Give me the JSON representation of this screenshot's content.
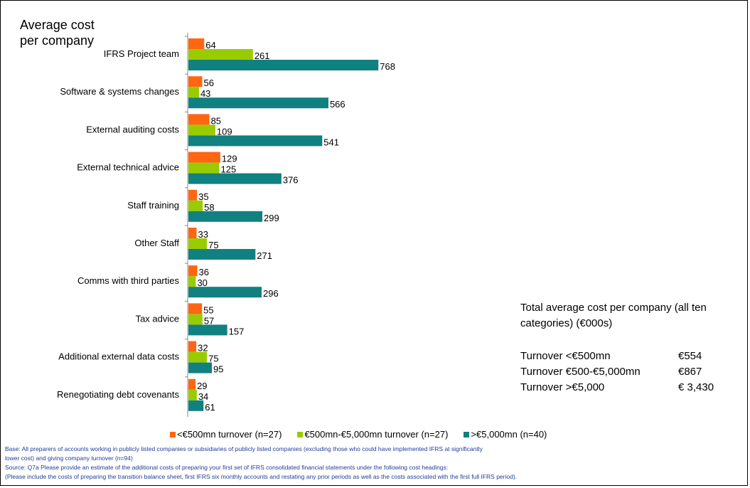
{
  "chart_data": {
    "type": "bar",
    "orientation": "horizontal",
    "title": "Average cost\nper company",
    "categories": [
      "IFRS Project team",
      "Software & systems changes",
      "External auditing costs",
      "External technical advice",
      "Staff training",
      "Other Staff",
      "Comms with third parties",
      "Tax advice",
      "Additional external data costs",
      "Renegotiating debt covenants"
    ],
    "series": [
      {
        "name": "<€500mn turnover (n=27)",
        "color": "#ff6611",
        "values": [
          64,
          56,
          85,
          129,
          35,
          33,
          36,
          55,
          32,
          29
        ]
      },
      {
        "name": "€500mn-€5,000mn turnover (n=27)",
        "color": "#99cc00",
        "values": [
          261,
          43,
          109,
          125,
          58,
          75,
          30,
          57,
          75,
          34
        ]
      },
      {
        "name": ">€5,000mn (n=40)",
        "color": "#118080",
        "values": [
          768,
          566,
          541,
          376,
          299,
          271,
          296,
          157,
          95,
          61
        ]
      }
    ],
    "xlim": [
      0,
      1000
    ],
    "legend_position": "bottom",
    "grid": false
  },
  "summary": {
    "heading": "Total average cost per company (all ten categories) (€000s)",
    "rows": [
      {
        "label": "Turnover <€500mn",
        "value": "€554"
      },
      {
        "label": "Turnover €500-€5,000mn",
        "value": "€867"
      },
      {
        "label": "Turnover >€5,000",
        "value": "€ 3,430"
      }
    ]
  },
  "notes": {
    "base_line1": "Base: All preparers of accounts working in publicly listed companies or subsidiaries of publicly listed companies (excluding those who could have implemented IFRS at significantly",
    "base_line2": "lower cost) and giving company turnover (n=94)",
    "source_line1": "Source: Q7a Please provide an estimate of the additional costs of preparing your first set of IFRS consolidated financial statements under the following cost headings:",
    "source_line2": "(Please include the costs of preparing the transition balance sheet, first IFRS six monthly accounts and restating any prior periods as well as the costs associated with the first full IFRS period)."
  }
}
